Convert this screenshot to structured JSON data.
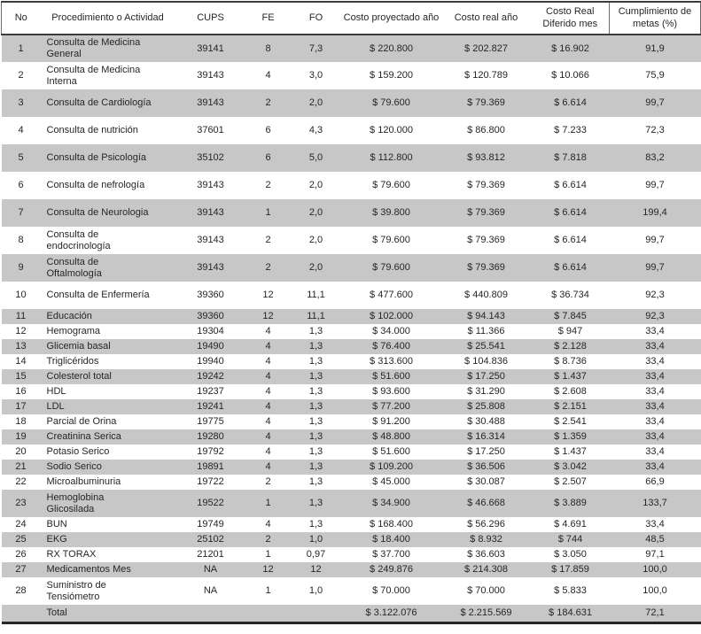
{
  "table": {
    "columns": [
      "No",
      "Procedimiento o Actividad",
      "CUPS",
      "FE",
      "FO",
      "Costo proyectado año",
      "Costo real año",
      "Costo Real Diferido mes",
      "Cumplimiento de metas (%)"
    ],
    "rows": [
      {
        "no": "1",
        "actividad": "Consulta de Medicina General",
        "cups": "39141",
        "fe": "8",
        "fo": "7,3",
        "costo_proyectado": "$ 220.800",
        "costo_real": "$ 202.827",
        "costo_diferido": "$ 16.902",
        "cumplimiento": "91,9"
      },
      {
        "no": "2",
        "actividad": "Consulta de Medicina Interna",
        "cups": "39143",
        "fe": "4",
        "fo": "3,0",
        "costo_proyectado": "$ 159.200",
        "costo_real": "$ 120.789",
        "costo_diferido": "$ 10.066",
        "cumplimiento": "75,9"
      },
      {
        "no": "3",
        "actividad": "Consulta de Cardiología",
        "cups": "39143",
        "fe": "2",
        "fo": "2,0",
        "costo_proyectado": "$ 79.600",
        "costo_real": "$ 79.369",
        "costo_diferido": "$ 6.614",
        "cumplimiento": "99,7"
      },
      {
        "no": "4",
        "actividad": "Consulta de nutrición",
        "cups": "37601",
        "fe": "6",
        "fo": "4,3",
        "costo_proyectado": "$ 120.000",
        "costo_real": "$ 86.800",
        "costo_diferido": "$ 7.233",
        "cumplimiento": "72,3"
      },
      {
        "no": "5",
        "actividad": "Consulta de Psicología",
        "cups": "35102",
        "fe": "6",
        "fo": "5,0",
        "costo_proyectado": "$ 112.800",
        "costo_real": "$ 93.812",
        "costo_diferido": "$ 7.818",
        "cumplimiento": "83,2"
      },
      {
        "no": "6",
        "actividad": "Consulta de nefrología",
        "cups": "39143",
        "fe": "2",
        "fo": "2,0",
        "costo_proyectado": "$ 79.600",
        "costo_real": "$ 79.369",
        "costo_diferido": "$ 6.614",
        "cumplimiento": "99,7"
      },
      {
        "no": "7",
        "actividad": "Consulta de Neurologia",
        "cups": "39143",
        "fe": "1",
        "fo": "2,0",
        "costo_proyectado": "$ 39.800",
        "costo_real": "$ 79.369",
        "costo_diferido": "$ 6.614",
        "cumplimiento": "199,4"
      },
      {
        "no": "8",
        "actividad": "Consulta de endocrinología",
        "cups": "39143",
        "fe": "2",
        "fo": "2,0",
        "costo_proyectado": "$ 79.600",
        "costo_real": "$ 79.369",
        "costo_diferido": "$ 6.614",
        "cumplimiento": "99,7"
      },
      {
        "no": "9",
        "actividad": "Consulta de Oftalmología",
        "cups": "39143",
        "fe": "2",
        "fo": "2,0",
        "costo_proyectado": "$ 79.600",
        "costo_real": "$ 79.369",
        "costo_diferido": "$ 6.614",
        "cumplimiento": "99,7"
      },
      {
        "no": "10",
        "actividad": "Consulta de Enfermería",
        "cups": "39360",
        "fe": "12",
        "fo": "11,1",
        "costo_proyectado": "$ 477.600",
        "costo_real": "$ 440.809",
        "costo_diferido": "$ 36.734",
        "cumplimiento": "92,3"
      },
      {
        "no": "11",
        "actividad": "Educación",
        "cups": "39360",
        "fe": "12",
        "fo": "11,1",
        "costo_proyectado": "$ 102.000",
        "costo_real": "$ 94.143",
        "costo_diferido": "$ 7.845",
        "cumplimiento": "92,3"
      },
      {
        "no": "12",
        "actividad": "Hemograma",
        "cups": "19304",
        "fe": "4",
        "fo": "1,3",
        "costo_proyectado": "$ 34.000",
        "costo_real": "$ 11.366",
        "costo_diferido": "$ 947",
        "cumplimiento": "33,4"
      },
      {
        "no": "13",
        "actividad": "Glicemia basal",
        "cups": "19490",
        "fe": "4",
        "fo": "1,3",
        "costo_proyectado": "$ 76.400",
        "costo_real": "$ 25.541",
        "costo_diferido": "$ 2.128",
        "cumplimiento": "33,4"
      },
      {
        "no": "14",
        "actividad": "Triglicéridos",
        "cups": "19940",
        "fe": "4",
        "fo": "1,3",
        "costo_proyectado": "$ 313.600",
        "costo_real": "$ 104.836",
        "costo_diferido": "$ 8.736",
        "cumplimiento": "33,4"
      },
      {
        "no": "15",
        "actividad": "Colesterol total",
        "cups": "19242",
        "fe": "4",
        "fo": "1,3",
        "costo_proyectado": "$ 51.600",
        "costo_real": "$ 17.250",
        "costo_diferido": "$ 1.437",
        "cumplimiento": "33,4"
      },
      {
        "no": "16",
        "actividad": "HDL",
        "cups": "19237",
        "fe": "4",
        "fo": "1,3",
        "costo_proyectado": "$ 93.600",
        "costo_real": "$ 31.290",
        "costo_diferido": "$ 2.608",
        "cumplimiento": "33,4"
      },
      {
        "no": "17",
        "actividad": "LDL",
        "cups": "19241",
        "fe": "4",
        "fo": "1,3",
        "costo_proyectado": "$ 77.200",
        "costo_real": "$ 25.808",
        "costo_diferido": "$ 2.151",
        "cumplimiento": "33,4"
      },
      {
        "no": "18",
        "actividad": "Parcial de Orina",
        "cups": "19775",
        "fe": "4",
        "fo": "1,3",
        "costo_proyectado": "$ 91.200",
        "costo_real": "$ 30.488",
        "costo_diferido": "$ 2.541",
        "cumplimiento": "33,4"
      },
      {
        "no": "19",
        "actividad": "Creatinina Serica",
        "cups": "19280",
        "fe": "4",
        "fo": "1,3",
        "costo_proyectado": "$ 48.800",
        "costo_real": "$ 16.314",
        "costo_diferido": "$ 1.359",
        "cumplimiento": "33,4"
      },
      {
        "no": "20",
        "actividad": "Potasio Serico",
        "cups": "19792",
        "fe": "4",
        "fo": "1,3",
        "costo_proyectado": "$ 51.600",
        "costo_real": "$ 17.250",
        "costo_diferido": "$ 1.437",
        "cumplimiento": "33,4"
      },
      {
        "no": "21",
        "actividad": "Sodio Serico",
        "cups": "19891",
        "fe": "4",
        "fo": "1,3",
        "costo_proyectado": "$ 109.200",
        "costo_real": "$ 36.506",
        "costo_diferido": "$ 3.042",
        "cumplimiento": "33,4"
      },
      {
        "no": "22",
        "actividad": "Microalbuminuria",
        "cups": "19722",
        "fe": "2",
        "fo": "1,3",
        "costo_proyectado": "$ 45.000",
        "costo_real": "$ 30.087",
        "costo_diferido": "$ 2.507",
        "cumplimiento": "66,9"
      },
      {
        "no": "23",
        "actividad": "Hemoglobina Glicosilada",
        "cups": "19522",
        "fe": "1",
        "fo": "1,3",
        "costo_proyectado": "$ 34.900",
        "costo_real": "$ 46.668",
        "costo_diferido": "$ 3.889",
        "cumplimiento": "133,7"
      },
      {
        "no": "24",
        "actividad": "BUN",
        "cups": "19749",
        "fe": "4",
        "fo": "1,3",
        "costo_proyectado": "$ 168.400",
        "costo_real": "$ 56.296",
        "costo_diferido": "$ 4.691",
        "cumplimiento": "33,4"
      },
      {
        "no": "25",
        "actividad": "EKG",
        "cups": "25102",
        "fe": "2",
        "fo": "1,0",
        "costo_proyectado": "$ 18.400",
        "costo_real": "$ 8.932",
        "costo_diferido": "$ 744",
        "cumplimiento": "48,5"
      },
      {
        "no": "26",
        "actividad": "RX TORAX",
        "cups": "21201",
        "fe": "1",
        "fo": "0,97",
        "costo_proyectado": "$ 37.700",
        "costo_real": "$ 36.603",
        "costo_diferido": "$ 3.050",
        "cumplimiento": "97,1"
      },
      {
        "no": "27",
        "actividad": "Medicamentos Mes",
        "cups": "NA",
        "fe": "12",
        "fo": "12",
        "costo_proyectado": "$ 249.876",
        "costo_real": "$ 214.308",
        "costo_diferido": "$ 17.859",
        "cumplimiento": "100,0"
      },
      {
        "no": "28",
        "actividad": "Suministro de Tensiómetro",
        "cups": "NA",
        "fe": "1",
        "fo": "1,0",
        "costo_proyectado": "$ 70.000",
        "costo_real": "$ 70.000",
        "costo_diferido": "$ 5.833",
        "cumplimiento": "100,0"
      }
    ],
    "total": {
      "no": "",
      "label": "Total",
      "cups": "",
      "fe": "",
      "fo": "",
      "costo_proyectado": "$ 3.122.076",
      "costo_real": "$ 2.215.569",
      "costo_diferido": "$ 184.631",
      "cumplimiento": "72,1"
    }
  },
  "colors": {
    "row_shade": "#c7c7c7",
    "rule_dark": "#3c3c3c",
    "text": "#262626"
  }
}
